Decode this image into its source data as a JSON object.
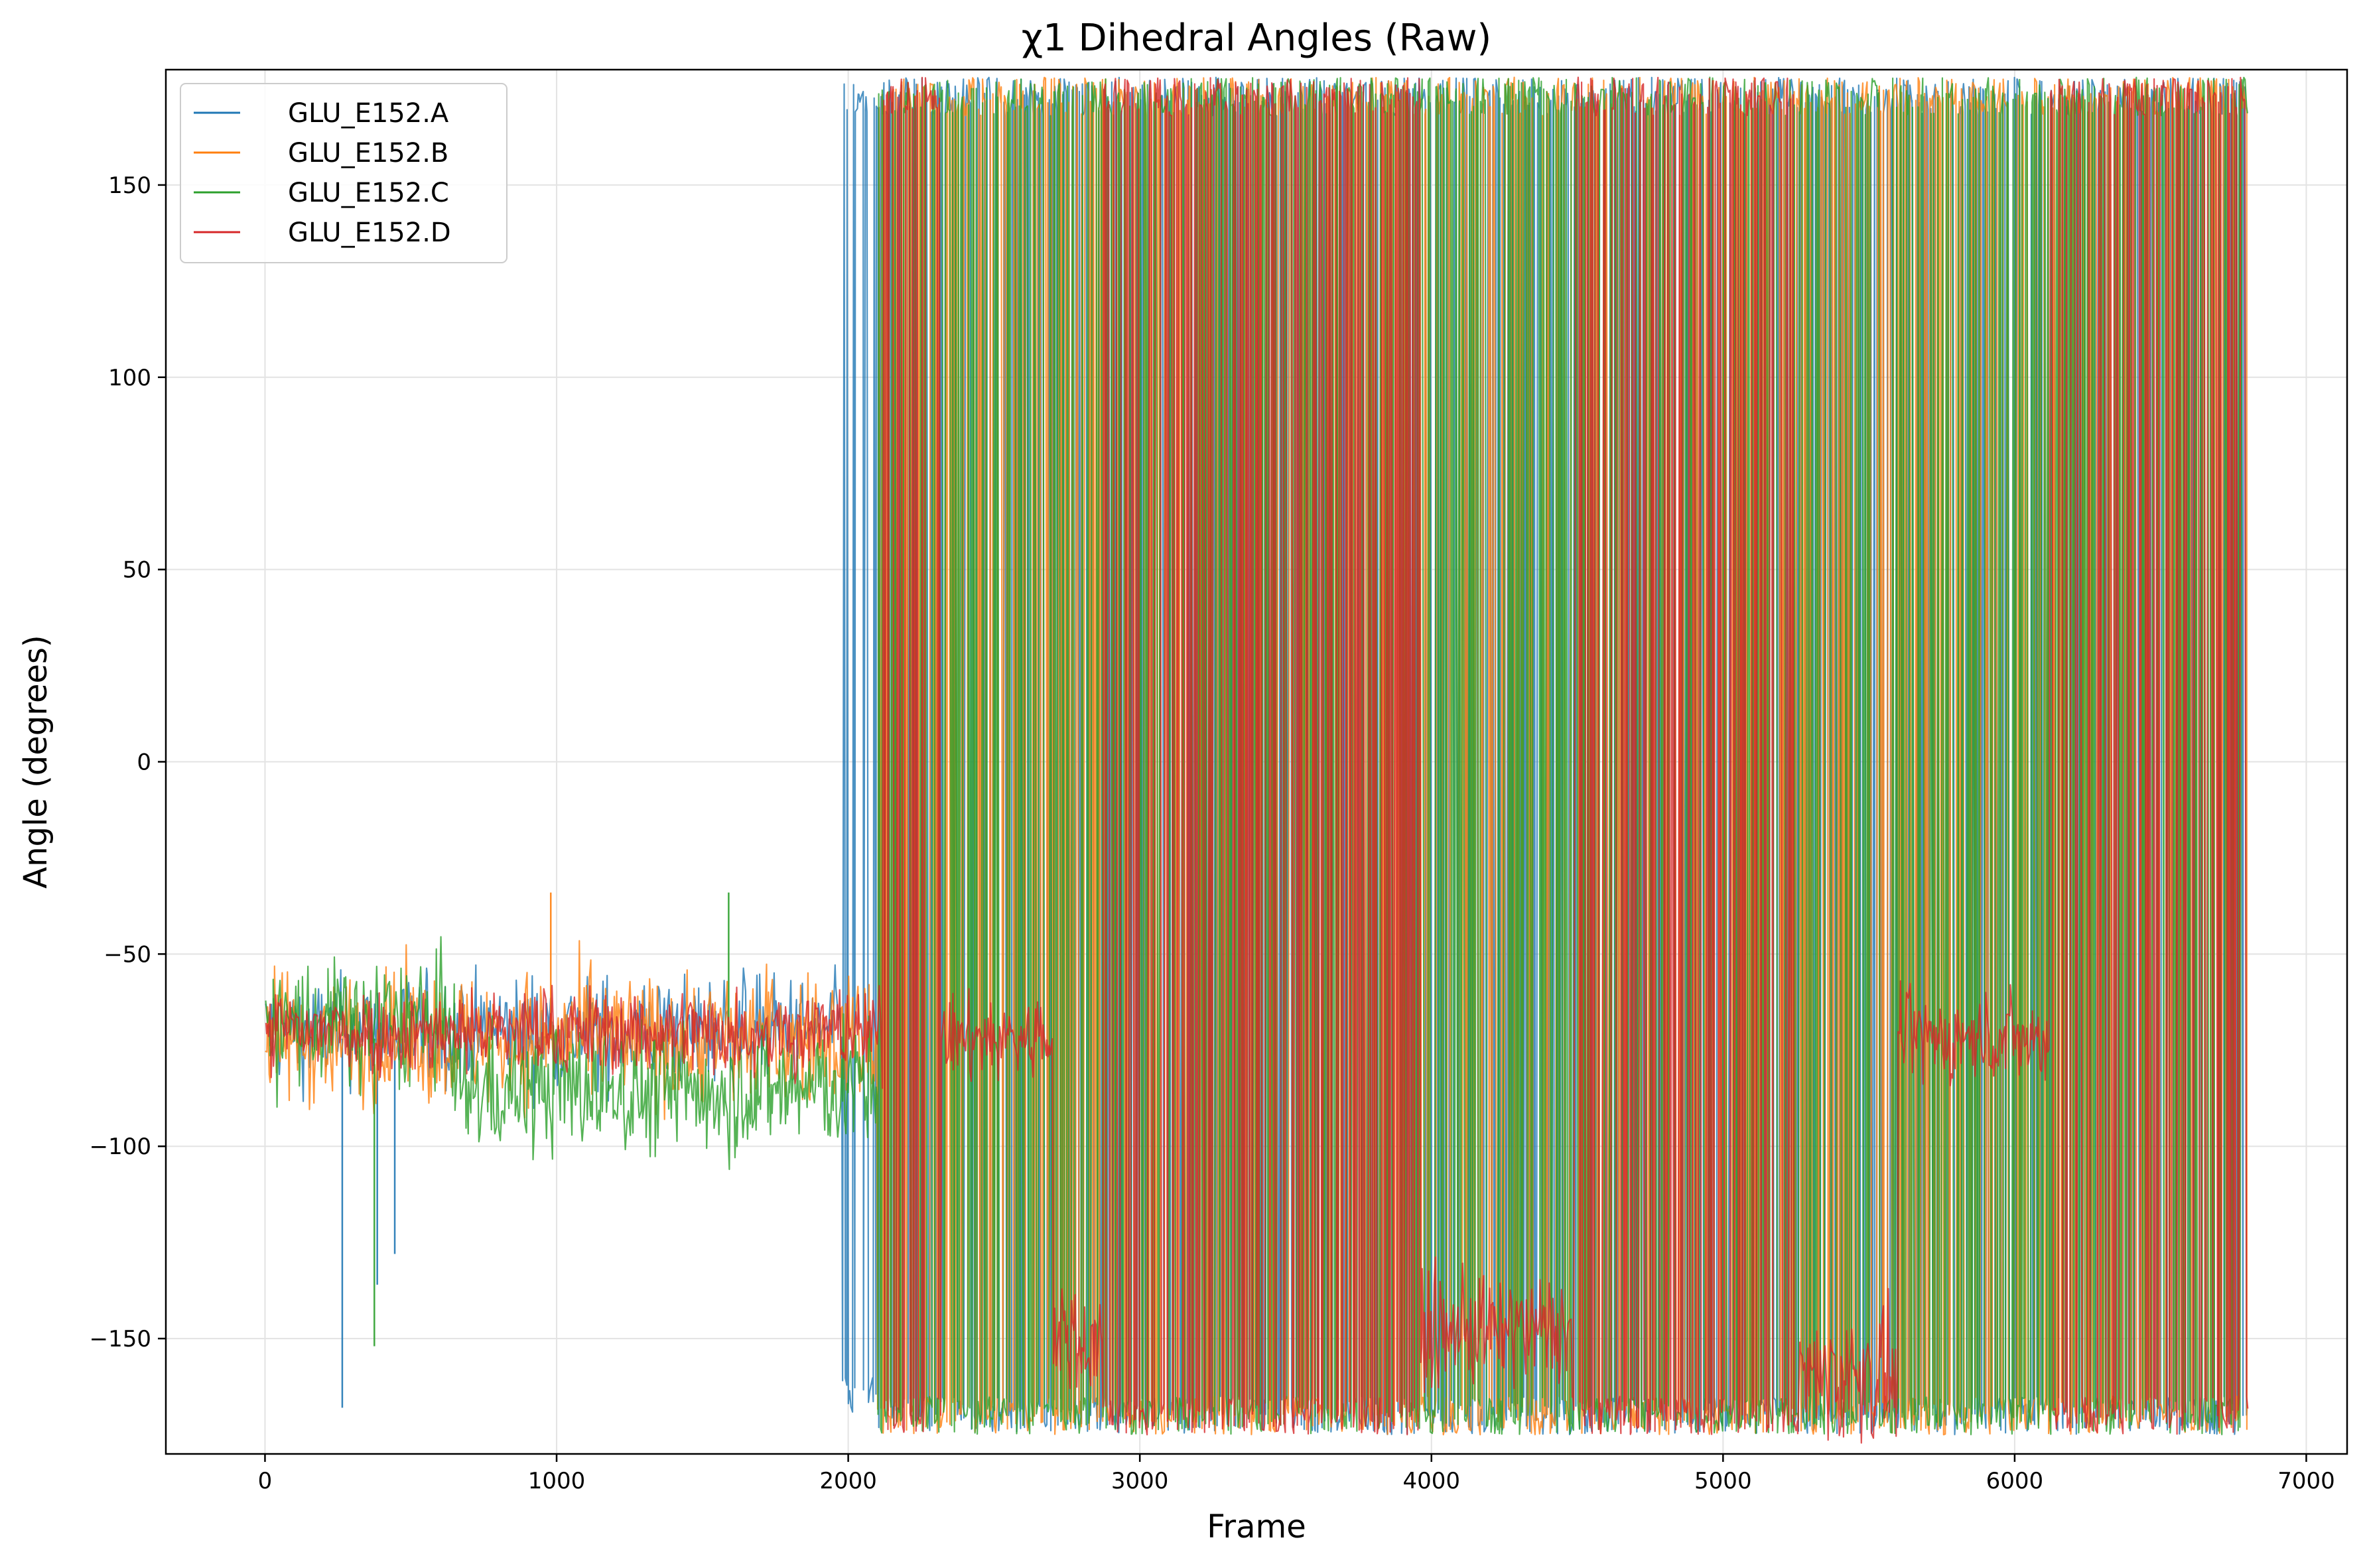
{
  "chart_data": {
    "type": "line",
    "title": "χ1 Dihedral Angles (Raw)",
    "xlabel": "Frame",
    "ylabel": "Angle (degrees)",
    "xlim": [
      -340,
      7140
    ],
    "ylim": [
      -180,
      180
    ],
    "xticks": [
      0,
      1000,
      2000,
      3000,
      4000,
      5000,
      6000,
      7000
    ],
    "yticks": [
      -150,
      -100,
      -50,
      0,
      50,
      100,
      150
    ],
    "xtick_labels": [
      "0",
      "1000",
      "2000",
      "3000",
      "4000",
      "5000",
      "6000",
      "7000"
    ],
    "ytick_labels": [
      "−150",
      "−100",
      "−50",
      "0",
      "50",
      "100",
      "150"
    ],
    "grid": true,
    "legend_position": "top-left",
    "frames": 6800,
    "series": [
      {
        "name": "GLU_E152.A",
        "color": "#1f77b4",
        "segments": [
          {
            "x": [
              0,
              1980
            ],
            "mode": "band",
            "center": -70,
            "spread": 10
          },
          {
            "x": [
              1980,
              2100
            ],
            "mode": "flip",
            "levels": [
              -170,
              178
            ]
          },
          {
            "x": [
              2100,
              6800
            ],
            "mode": "flip",
            "levels": [
              -175,
              178
            ]
          }
        ],
        "spikes": [
          {
            "x": 265,
            "y": -168
          },
          {
            "x": 385,
            "y": -136
          },
          {
            "x": 445,
            "y": -128
          }
        ]
      },
      {
        "name": "GLU_E152.B",
        "color": "#ff7f0e",
        "segments": [
          {
            "x": [
              0,
              2100
            ],
            "mode": "band",
            "center": -72,
            "spread": 12
          },
          {
            "x": [
              2100,
              6800
            ],
            "mode": "flip",
            "levels": [
              -175,
              178
            ]
          }
        ],
        "spikes": [
          {
            "x": 980,
            "y": -34
          }
        ]
      },
      {
        "name": "GLU_E152.C",
        "color": "#2ca02c",
        "segments": [
          {
            "x": [
              0,
              650
            ],
            "mode": "band",
            "center": -68,
            "spread": 12
          },
          {
            "x": [
              650,
              2100
            ],
            "mode": "band",
            "center": -85,
            "spread": 12
          },
          {
            "x": [
              2100,
              6800
            ],
            "mode": "flip",
            "levels": [
              -175,
              178
            ]
          }
        ],
        "spikes": [
          {
            "x": 375,
            "y": -152
          },
          {
            "x": 1590,
            "y": -34
          }
        ]
      },
      {
        "name": "GLU_E152.D",
        "color": "#d62728",
        "segments": [
          {
            "x": [
              0,
              2120
            ],
            "mode": "band",
            "center": -70,
            "spread": 8
          },
          {
            "x": [
              2120,
              2320
            ],
            "mode": "flip",
            "levels": [
              -175,
              178
            ]
          },
          {
            "x": [
              2320,
              2700
            ],
            "mode": "band",
            "center": -72,
            "spread": 8
          },
          {
            "x": [
              2700,
              2870
            ],
            "mode": "band",
            "center": -150,
            "spread": 10
          },
          {
            "x": [
              2870,
              3960
            ],
            "mode": "flip",
            "levels": [
              -175,
              178
            ]
          },
          {
            "x": [
              3960,
              4480
            ],
            "mode": "band",
            "center": -148,
            "spread": 10
          },
          {
            "x": [
              4480,
              5260
            ],
            "mode": "flip",
            "levels": [
              -175,
              178
            ]
          },
          {
            "x": [
              5260,
              5600
            ],
            "mode": "band",
            "center": -160,
            "spread": 12
          },
          {
            "x": [
              5600,
              6120
            ],
            "mode": "band",
            "center": -72,
            "spread": 8
          },
          {
            "x": [
              6120,
              6800
            ],
            "mode": "flip",
            "levels": [
              -175,
              178
            ]
          }
        ],
        "spikes": []
      }
    ]
  }
}
